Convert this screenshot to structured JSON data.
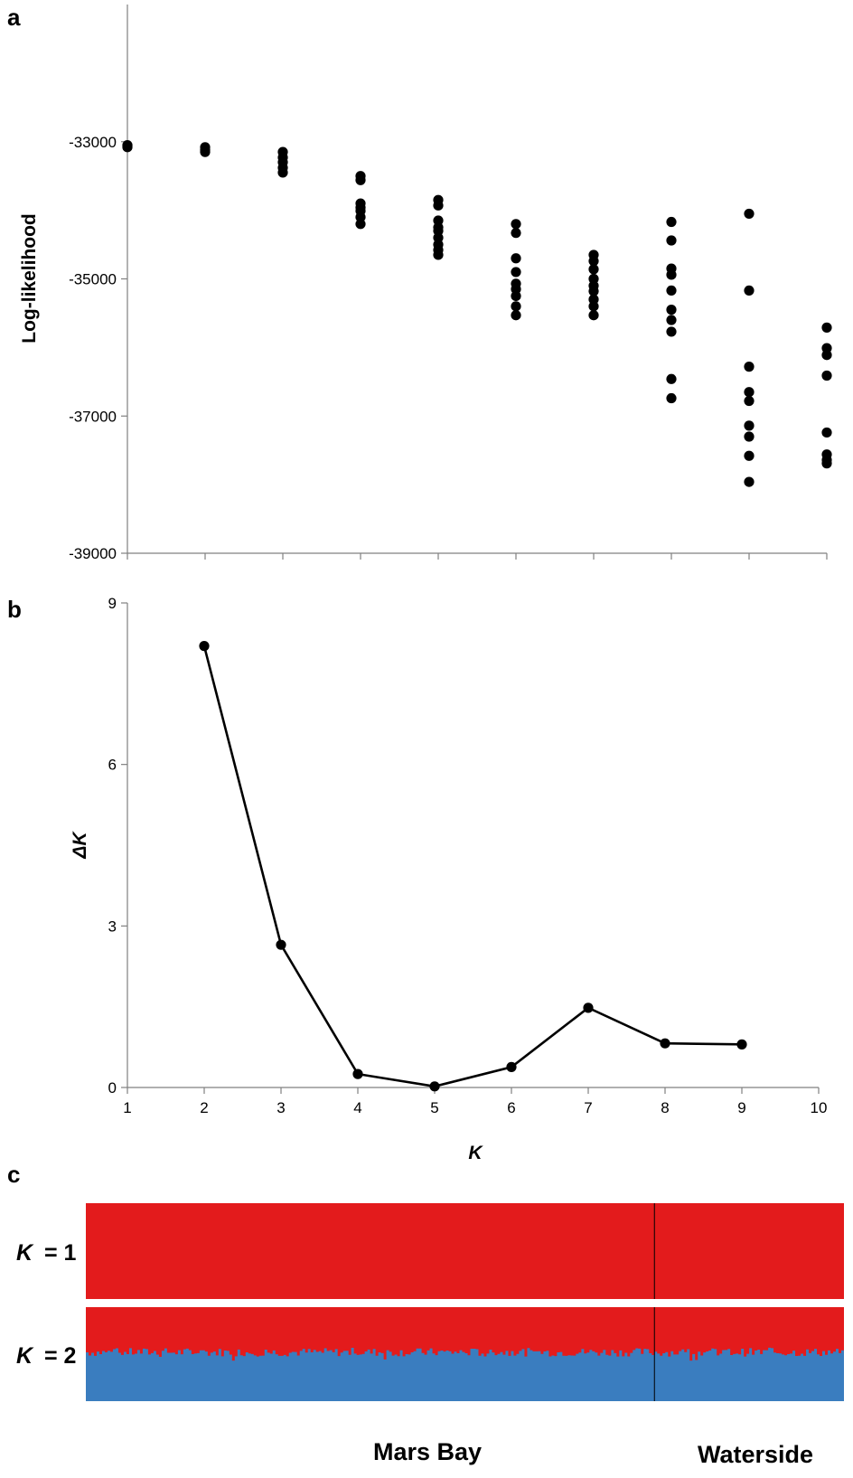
{
  "chart_data": [
    {
      "panel": "a",
      "type": "scatter",
      "ylabel": "Log-likelihood",
      "xlabel": "",
      "yticks": [
        -33000,
        -35000,
        -37000,
        -39000
      ],
      "ylim": [
        -39000,
        -31000
      ],
      "xlim": [
        1,
        10
      ],
      "x_tick_labels_shown": false,
      "grid": false,
      "points": [
        {
          "k": 1,
          "values": [
            -33050,
            -33060,
            -33080
          ]
        },
        {
          "k": 2,
          "values": [
            -33080,
            -33120,
            -33150
          ]
        },
        {
          "k": 3,
          "values": [
            -33150,
            -33230,
            -33300,
            -33380,
            -33450
          ]
        },
        {
          "k": 4,
          "values": [
            -33500,
            -33560,
            -33900,
            -33960,
            -34010,
            -34100,
            -34200
          ]
        },
        {
          "k": 5,
          "values": [
            -33850,
            -33930,
            -34150,
            -34250,
            -34300,
            -34400,
            -34500,
            -34580,
            -34650
          ]
        },
        {
          "k": 6,
          "values": [
            -34200,
            -34330,
            -34700,
            -34900,
            -35070,
            -35150,
            -35250,
            -35400,
            -35530
          ]
        },
        {
          "k": 7,
          "values": [
            -34650,
            -34740,
            -34860,
            -35000,
            -35100,
            -35180,
            -35300,
            -35400,
            -35530
          ]
        },
        {
          "k": 8,
          "values": [
            -34170,
            -34440,
            -34850,
            -34940,
            -35170,
            -35450,
            -35600,
            -35770,
            -36460,
            -36740
          ]
        },
        {
          "k": 9,
          "values": [
            -34050,
            -35170,
            -36280,
            -36650,
            -36780,
            -37140,
            -37300,
            -37580,
            -37960
          ]
        },
        {
          "k": 10,
          "values": [
            -35710,
            -36010,
            -36110,
            -36410,
            -37240,
            -37560,
            -37640,
            -37690
          ]
        }
      ]
    },
    {
      "panel": "b",
      "type": "line",
      "ylabel": "ΔK",
      "xlabel": "K",
      "x": [
        2,
        3,
        4,
        5,
        6,
        7,
        8,
        9
      ],
      "values": [
        8.2,
        2.65,
        0.25,
        0.02,
        0.38,
        1.48,
        0.82,
        0.8
      ],
      "ylim": [
        0,
        9
      ],
      "yticks": [
        0,
        3,
        6,
        9
      ],
      "xticks": [
        1,
        2,
        3,
        4,
        5,
        6,
        7,
        8,
        9,
        10
      ],
      "xlim": [
        1,
        10
      ],
      "grid": false
    },
    {
      "panel": "c",
      "type": "bar",
      "stacked": true,
      "rows": [
        {
          "label": "K = 1",
          "k": "K",
          "eq": "= 1",
          "clusters": [
            {
              "color": "#e31b1c",
              "proportion": 1.0
            }
          ]
        },
        {
          "label": "K = 2",
          "k": "K",
          "eq": "= 2",
          "clusters": [
            {
              "color": "#e31b1c",
              "mean_proportion": 0.48
            },
            {
              "color": "#3a7dbf",
              "mean_proportion": 0.52
            }
          ]
        }
      ],
      "populations": [
        "Mars Bay",
        "Waterside"
      ],
      "mars_bay_fraction": 0.75
    }
  ],
  "colors": {
    "red": "#e31b1c",
    "blue": "#3a7dbf",
    "axis": "#808080",
    "point": "#000000"
  }
}
